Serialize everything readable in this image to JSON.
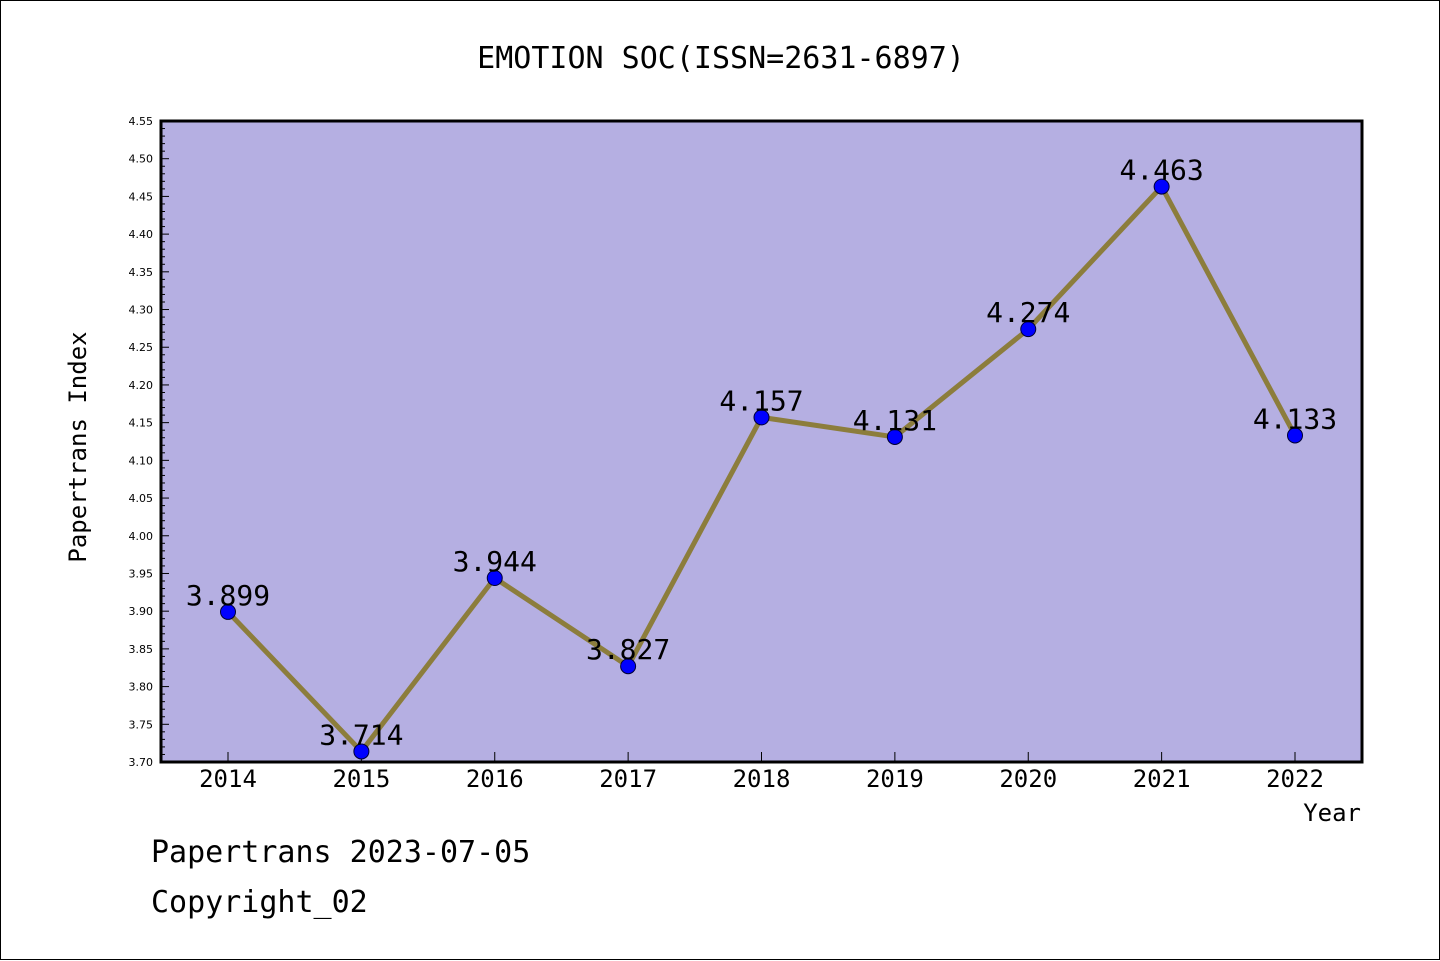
{
  "chart_data": {
    "type": "line",
    "title": "EMOTION SOC(ISSN=2631-6897)",
    "xlabel": "Year",
    "ylabel": "Papertrans Index",
    "categories": [
      "2014",
      "2015",
      "2016",
      "2017",
      "2018",
      "2019",
      "2020",
      "2021",
      "2022"
    ],
    "values": [
      3.899,
      3.714,
      3.944,
      3.827,
      4.157,
      4.131,
      4.274,
      4.463,
      4.133
    ],
    "data_labels": [
      "3.899",
      "3.714",
      "3.944",
      "3.827",
      "4.157",
      "4.131",
      "4.274",
      "4.463",
      "4.133"
    ],
    "ylim": [
      3.7,
      4.55
    ],
    "yticks": [
      "3.70",
      "3.75",
      "3.80",
      "3.85",
      "3.90",
      "3.95",
      "4.00",
      "4.05",
      "4.10",
      "4.15",
      "4.20",
      "4.25",
      "4.30",
      "4.35",
      "4.40",
      "4.45",
      "4.50",
      "4.55"
    ],
    "grid": false,
    "colors": {
      "plot_background": "#b5afe2",
      "line": "#8c7d3c",
      "marker": "#0000ff"
    }
  },
  "footer": {
    "source": "Papertrans 2023-07-05",
    "copyright": "Copyright_02"
  }
}
